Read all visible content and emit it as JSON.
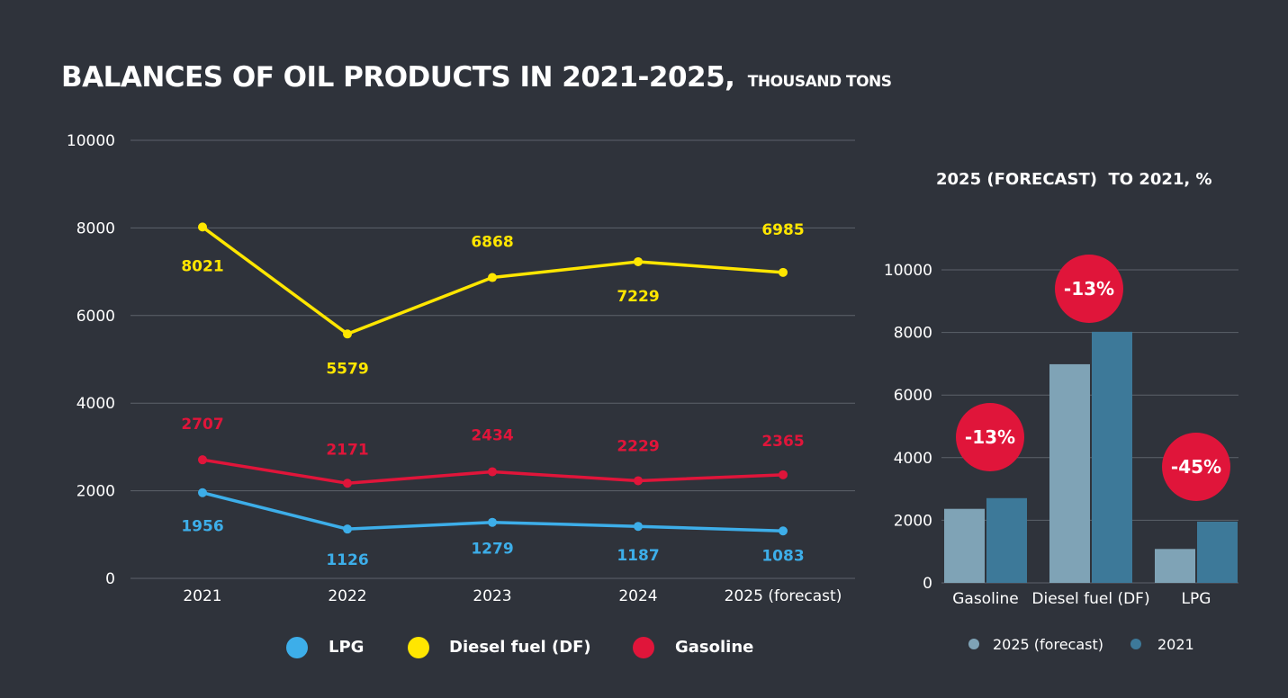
{
  "title": {
    "main": "BALANCES OF OIL PRODUCTS IN 2021-2025,",
    "unit": "THOUSAND TONS"
  },
  "colors": {
    "lpg": "#3daee9",
    "diesel": "#ffe600",
    "gasoline": "#e0153a",
    "bar_forecast": "#7fa3b6",
    "bar_2021": "#3d7999",
    "grid": "#5d626b"
  },
  "chart_data": [
    {
      "type": "line",
      "categories": [
        "2021",
        "2022",
        "2023",
        "2024",
        "2025 (forecast)"
      ],
      "ylim": [
        0,
        10000
      ],
      "yticks": [
        0,
        2000,
        4000,
        6000,
        8000,
        10000
      ],
      "grid": true,
      "legend_position": "bottom",
      "series": [
        {
          "name": "LPG",
          "key": "lpg",
          "values": [
            1956,
            1126,
            1279,
            1187,
            1083
          ]
        },
        {
          "name": "Diesel fuel (DF)",
          "key": "diesel",
          "values": [
            8021,
            5579,
            6868,
            7229,
            6985
          ]
        },
        {
          "name": "Gasoline",
          "key": "gasoline",
          "values": [
            2707,
            2171,
            2434,
            2229,
            2365
          ]
        }
      ]
    },
    {
      "type": "bar",
      "title": "2025 (FORECAST)  TO 2021, %",
      "categories": [
        "Gasoline",
        "Diesel fuel (DF)",
        "LPG"
      ],
      "ylim": [
        0,
        10000
      ],
      "yticks": [
        0,
        2000,
        4000,
        6000,
        8000,
        10000
      ],
      "grid": true,
      "legend_position": "bottom",
      "series": [
        {
          "name": "2025 (forecast)",
          "key": "bar_forecast",
          "values": [
            2365,
            6985,
            1083
          ]
        },
        {
          "name": "2021",
          "key": "bar_2021",
          "values": [
            2707,
            8021,
            1956
          ]
        }
      ],
      "annotations": [
        "-13%",
        "-13%",
        "-45%"
      ]
    }
  ]
}
